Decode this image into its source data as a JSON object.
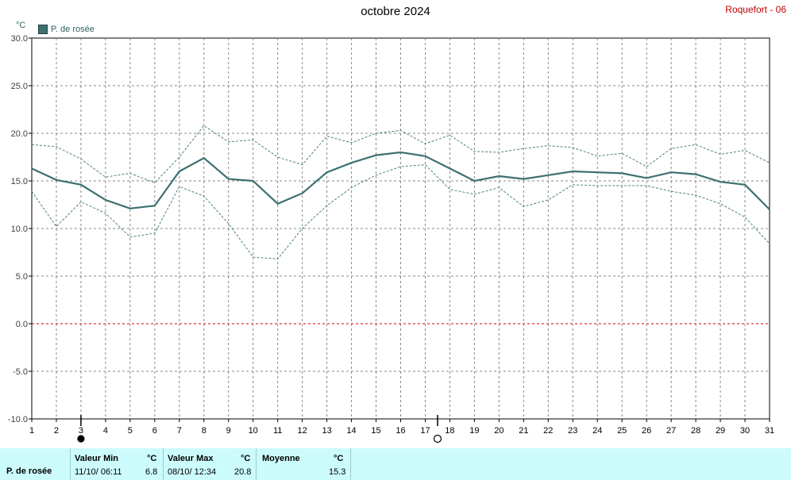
{
  "title": "octobre 2024",
  "station": "Roquefort - 06",
  "unit": "°C",
  "legend": "P. de rosée",
  "colors": {
    "main": "#3d7070",
    "band": "#4a8080",
    "zero": "#d00000",
    "grid": "#888888"
  },
  "moon_phases": [
    {
      "day": 3,
      "phase": "new-moon"
    },
    {
      "day": 17.5,
      "phase": "full-moon"
    }
  ],
  "chart_data": {
    "type": "line",
    "x": [
      1,
      2,
      3,
      4,
      5,
      6,
      7,
      8,
      9,
      10,
      11,
      12,
      13,
      14,
      15,
      16,
      17,
      18,
      19,
      20,
      21,
      22,
      23,
      24,
      25,
      26,
      27,
      28,
      29,
      30,
      31
    ],
    "series": [
      {
        "name": "P. de rosée",
        "values": [
          16.3,
          15.1,
          14.6,
          13.0,
          12.1,
          12.4,
          16.0,
          17.4,
          15.2,
          15.0,
          12.6,
          13.7,
          15.9,
          16.9,
          17.7,
          18.0,
          17.6,
          16.3,
          15.0,
          15.5,
          15.2,
          15.6,
          16.0,
          15.9,
          15.8,
          15.3,
          15.9,
          15.7,
          14.9,
          14.6,
          12.0
        ]
      },
      {
        "values": [
          18.8,
          18.6,
          17.3,
          15.4,
          15.8,
          14.8,
          17.5,
          20.8,
          19.1,
          19.3,
          17.5,
          16.7,
          19.7,
          19.0,
          20.0,
          20.3,
          18.9,
          19.8,
          18.1,
          18.0,
          18.4,
          18.7,
          18.5,
          17.6,
          17.9,
          16.5,
          18.4,
          18.8,
          17.8,
          18.2,
          16.9
        ]
      },
      {
        "values": [
          13.9,
          10.2,
          12.8,
          11.6,
          9.1,
          9.5,
          14.4,
          13.4,
          10.5,
          7.0,
          6.8,
          10.0,
          12.4,
          14.3,
          15.6,
          16.5,
          16.7,
          14.1,
          13.6,
          14.3,
          12.3,
          13.0,
          14.6,
          14.5,
          14.5,
          14.5,
          13.9,
          13.5,
          12.6,
          11.2,
          8.4
        ]
      }
    ],
    "ylim": [
      -10.0,
      30.0
    ],
    "yticks": [
      "30.0",
      "25.0",
      "20.0",
      "15.0",
      "10.0",
      "5.0",
      "0.0",
      "-5.0",
      "-10.0"
    ],
    "xticks": [
      "1",
      "2",
      "3",
      "4",
      "5",
      "6",
      "7",
      "8",
      "9",
      "10",
      "11",
      "12",
      "13",
      "14",
      "15",
      "16",
      "17",
      "18",
      "19",
      "20",
      "21",
      "22",
      "23",
      "24",
      "25",
      "26",
      "27",
      "28",
      "29",
      "30",
      "31"
    ],
    "grid": true,
    "legend_position": "top-left"
  },
  "stats": {
    "row_label": "P. de rosée",
    "min": {
      "header": "Valeur Min",
      "unit": "°C",
      "date": "11/10/ 06:11",
      "value": "6.8"
    },
    "max": {
      "header": "Valeur Max",
      "unit": "°C",
      "date": "08/10/ 12:34",
      "value": "20.8"
    },
    "avg": {
      "header": "Moyenne",
      "unit": "°C",
      "value": "15.3"
    }
  }
}
